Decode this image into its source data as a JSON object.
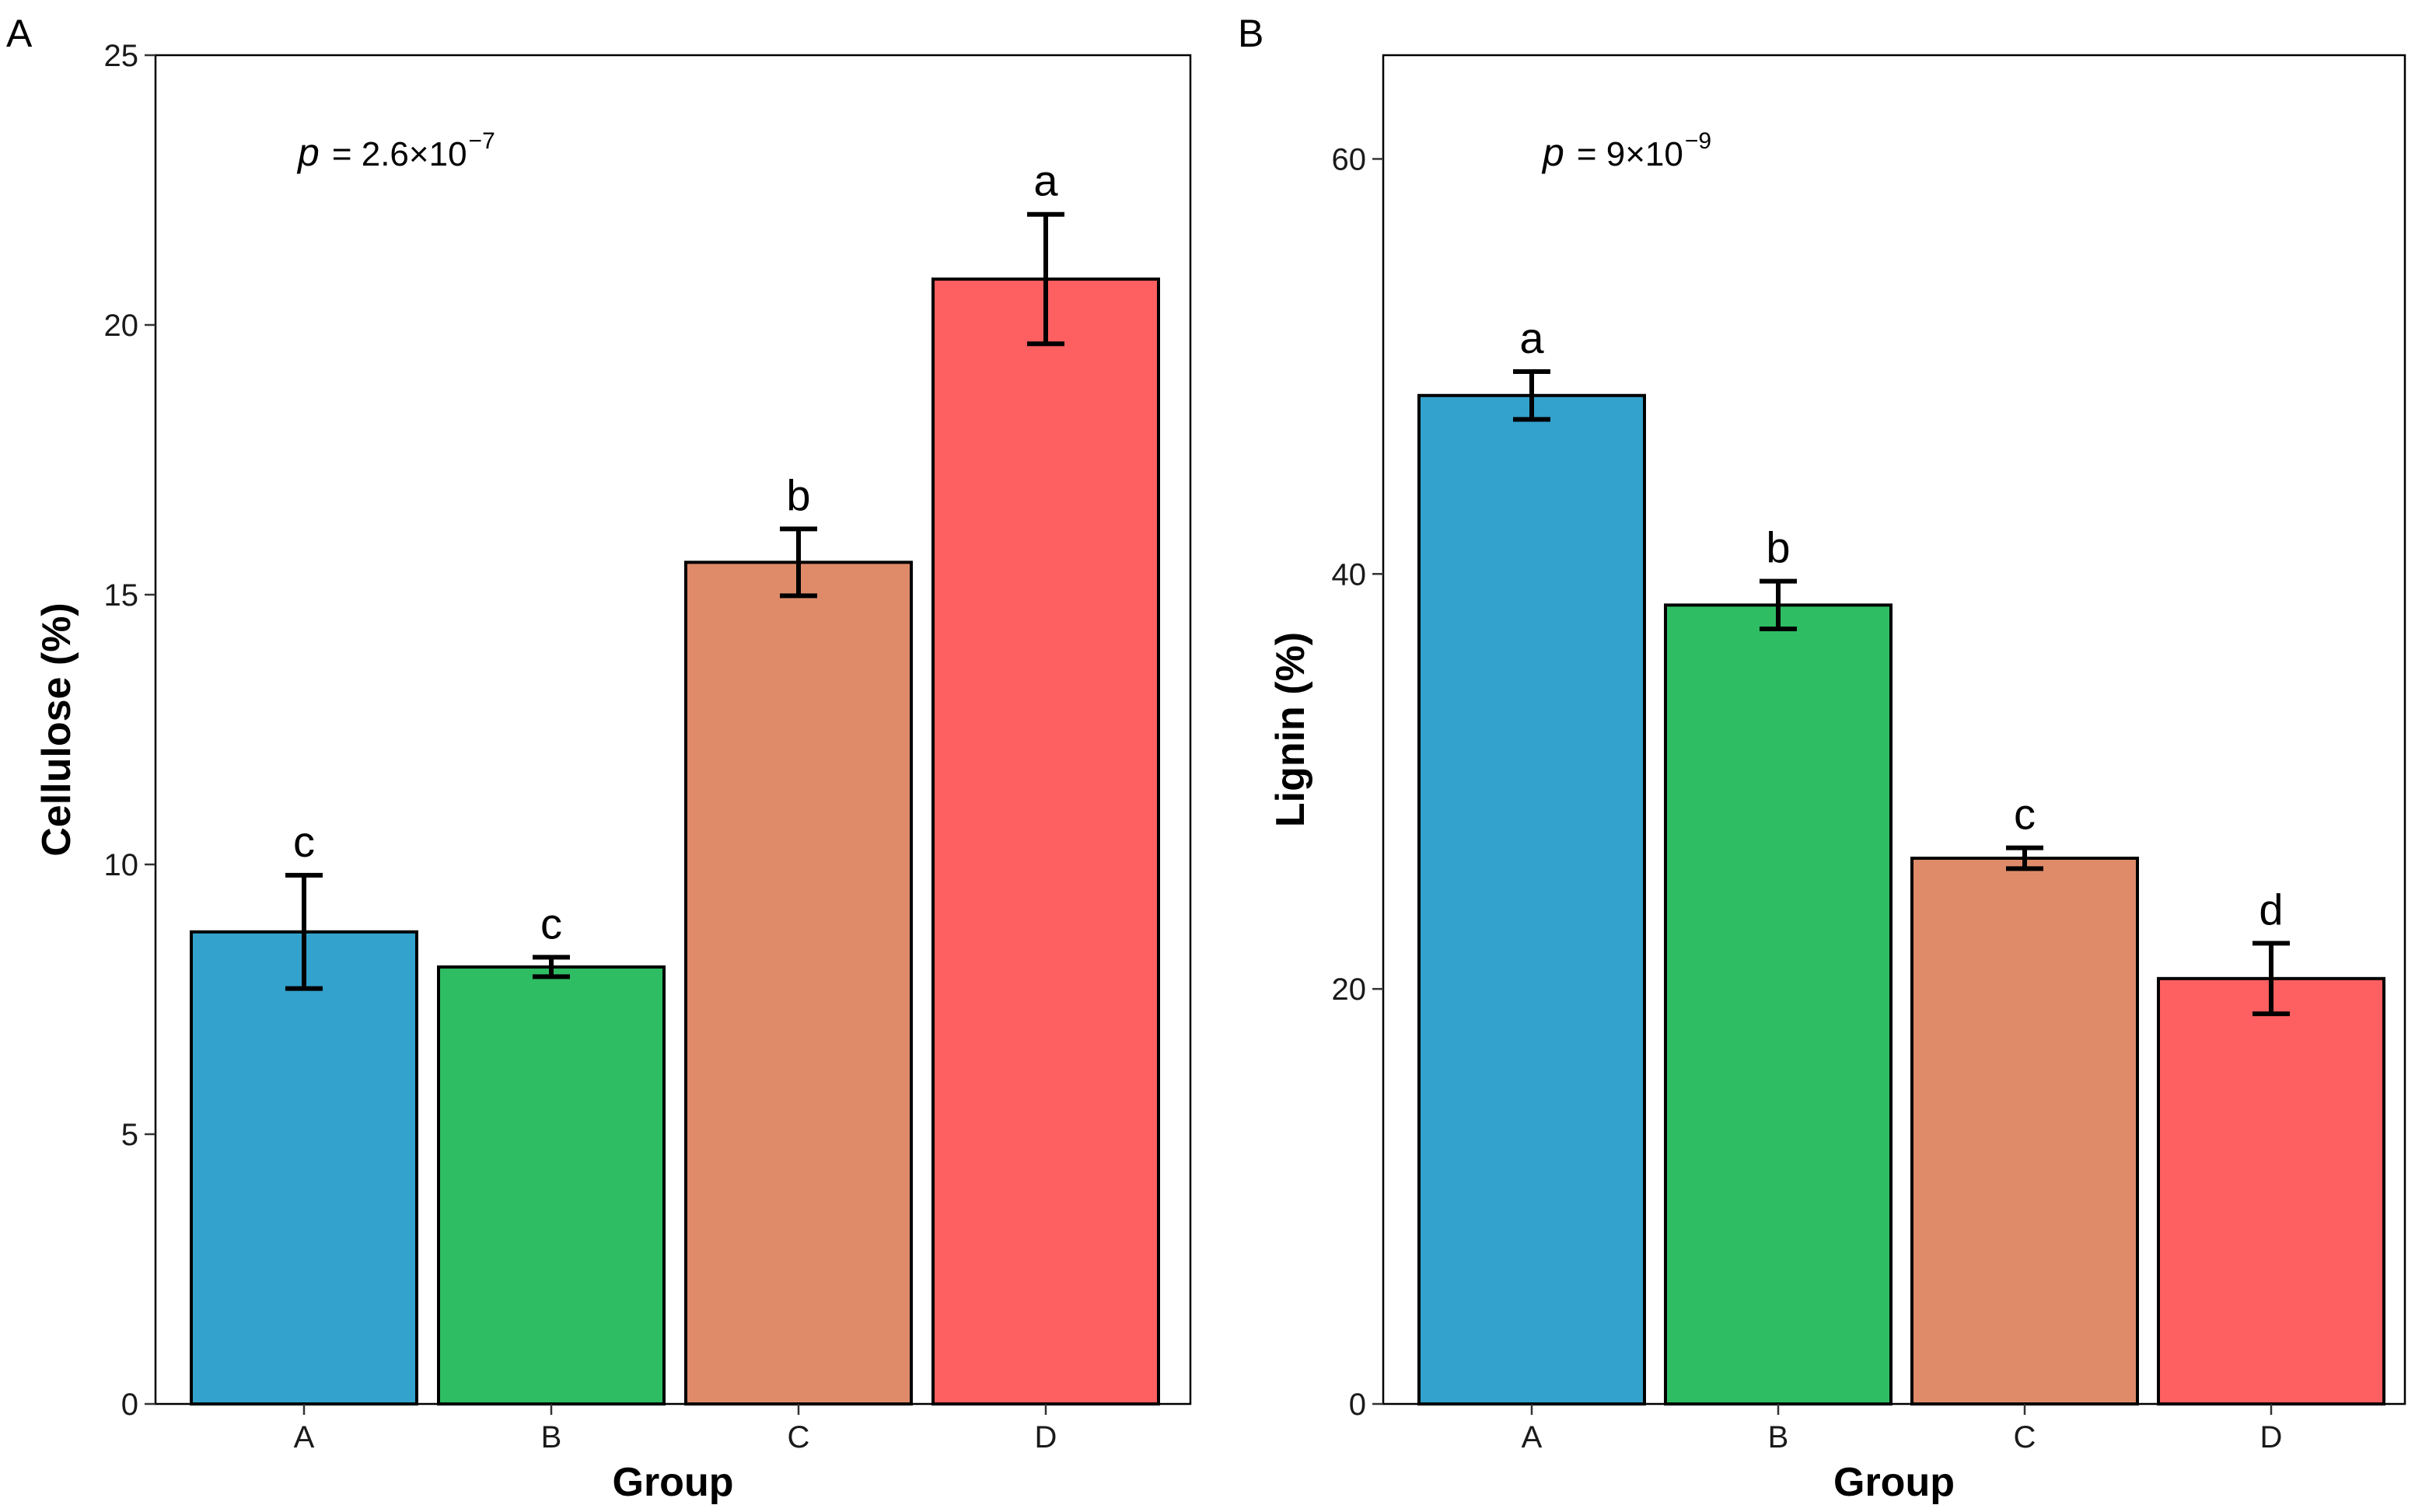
{
  "chart_data": [
    {
      "type": "bar",
      "panel_label": "A",
      "title": "",
      "xlabel": "Group",
      "ylabel": "Cellulose (%)",
      "ylim": [
        0,
        25
      ],
      "yticks": [
        0,
        5,
        10,
        15,
        20,
        25
      ],
      "ytick_labels": [
        "0",
        "5",
        "10",
        "15",
        "20",
        "25"
      ],
      "categories": [
        "A",
        "B",
        "C",
        "D"
      ],
      "values": [
        8.75,
        8.1,
        15.6,
        20.85
      ],
      "errors": [
        1.05,
        0.18,
        0.62,
        1.2
      ],
      "colors": [
        "#33a2cc",
        "#2ebd63",
        "#df8b6a",
        "#fe5f60"
      ],
      "significance_letters": [
        "c",
        "c",
        "b",
        "a"
      ],
      "annotation": {
        "p_symbol": "p",
        "p_text": "= 2.6×10",
        "p_exponent": "−7"
      },
      "grid": false
    },
    {
      "type": "bar",
      "panel_label": "B",
      "title": "",
      "xlabel": "Group",
      "ylabel": "Lignin (%)",
      "ylim": [
        0,
        65
      ],
      "yticks": [
        0,
        20,
        40,
        60
      ],
      "ytick_labels": [
        "0",
        "20",
        "40",
        "60"
      ],
      "categories": [
        "A",
        "B",
        "C",
        "D"
      ],
      "values": [
        48.6,
        38.5,
        26.3,
        20.5
      ],
      "errors": [
        1.15,
        1.15,
        0.5,
        1.7
      ],
      "colors": [
        "#33a2cc",
        "#2ebd63",
        "#df8b6a",
        "#fe5f60"
      ],
      "significance_letters": [
        "a",
        "b",
        "c",
        "d"
      ],
      "annotation": {
        "p_symbol": "p",
        "p_text": "= 9×10",
        "p_exponent": "−9"
      },
      "grid": false
    }
  ]
}
